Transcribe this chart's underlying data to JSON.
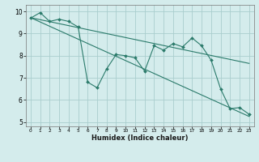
{
  "xlabel": "Humidex (Indice chaleur)",
  "bg_color": "#d4ecec",
  "grid_color": "#aacece",
  "line_color": "#2a7a6a",
  "xlim": [
    -0.5,
    23.5
  ],
  "ylim": [
    4.8,
    10.3
  ],
  "xticks": [
    0,
    1,
    2,
    3,
    4,
    5,
    6,
    7,
    8,
    9,
    10,
    11,
    12,
    13,
    14,
    15,
    16,
    17,
    18,
    19,
    20,
    21,
    22,
    23
  ],
  "yticks": [
    5,
    6,
    7,
    8,
    9,
    10
  ],
  "series1_x": [
    0,
    1,
    2,
    3,
    4,
    5,
    6,
    7,
    8,
    9,
    10,
    11,
    12,
    13,
    14,
    15,
    16,
    17,
    18,
    19,
    20,
    21,
    22,
    23
  ],
  "series1_y": [
    9.7,
    9.95,
    9.55,
    9.65,
    9.55,
    9.3,
    6.8,
    6.55,
    7.4,
    8.05,
    8.0,
    7.9,
    7.3,
    8.45,
    8.25,
    8.55,
    8.4,
    8.8,
    8.45,
    7.8,
    6.5,
    5.6,
    5.65,
    5.35
  ],
  "trend1_x": [
    0,
    23
  ],
  "trend1_y": [
    9.72,
    7.65
  ],
  "trend2_x": [
    0,
    23
  ],
  "trend2_y": [
    9.72,
    5.25
  ]
}
